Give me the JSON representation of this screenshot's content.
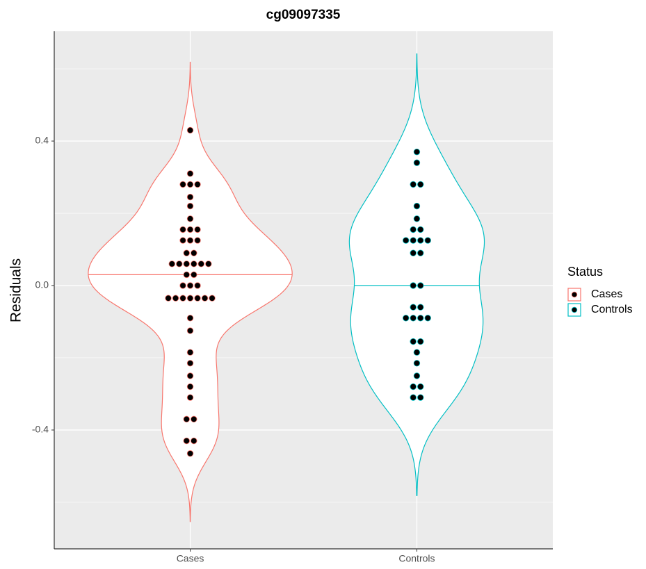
{
  "chart_data": {
    "type": "violin",
    "title": "cg09097335",
    "y_label": "Residuals",
    "categories": [
      "Cases",
      "Controls"
    ],
    "legend_title": "Status",
    "series": [
      {
        "name": "Cases",
        "color": "#F8766D",
        "values": [
          0.43,
          0.31,
          0.28,
          0.28,
          0.28,
          0.245,
          0.22,
          0.185,
          0.155,
          0.155,
          0.155,
          0.125,
          0.125,
          0.125,
          0.09,
          0.09,
          0.06,
          0.06,
          0.06,
          0.06,
          0.06,
          0.06,
          0.03,
          0.03,
          0,
          0,
          0,
          -0.035,
          -0.035,
          -0.035,
          -0.035,
          -0.035,
          -0.035,
          -0.035,
          -0.09,
          -0.125,
          -0.185,
          -0.215,
          -0.25,
          -0.28,
          -0.31,
          -0.37,
          -0.37,
          -0.43,
          -0.43,
          -0.465
        ]
      },
      {
        "name": "Controls",
        "color": "#00BFC4",
        "values": [
          0.37,
          0.34,
          0.28,
          0.28,
          0.22,
          0.185,
          0.155,
          0.155,
          0.125,
          0.125,
          0.125,
          0.125,
          0.09,
          0.09,
          0,
          0,
          -0.06,
          -0.06,
          -0.09,
          -0.09,
          -0.09,
          -0.09,
          -0.155,
          -0.155,
          -0.185,
          -0.215,
          -0.25,
          -0.28,
          -0.28,
          -0.31,
          -0.31
        ]
      }
    ],
    "ylim": [
      -0.729,
      0.704
    ],
    "yticks": [
      -0.4,
      {
        "value": 0,
        "label": "0.0"
      },
      0.4
    ],
    "minor_yticks": [
      -0.6,
      -0.2,
      0.2,
      0.6
    ],
    "grid": true,
    "legend_position": "right"
  }
}
